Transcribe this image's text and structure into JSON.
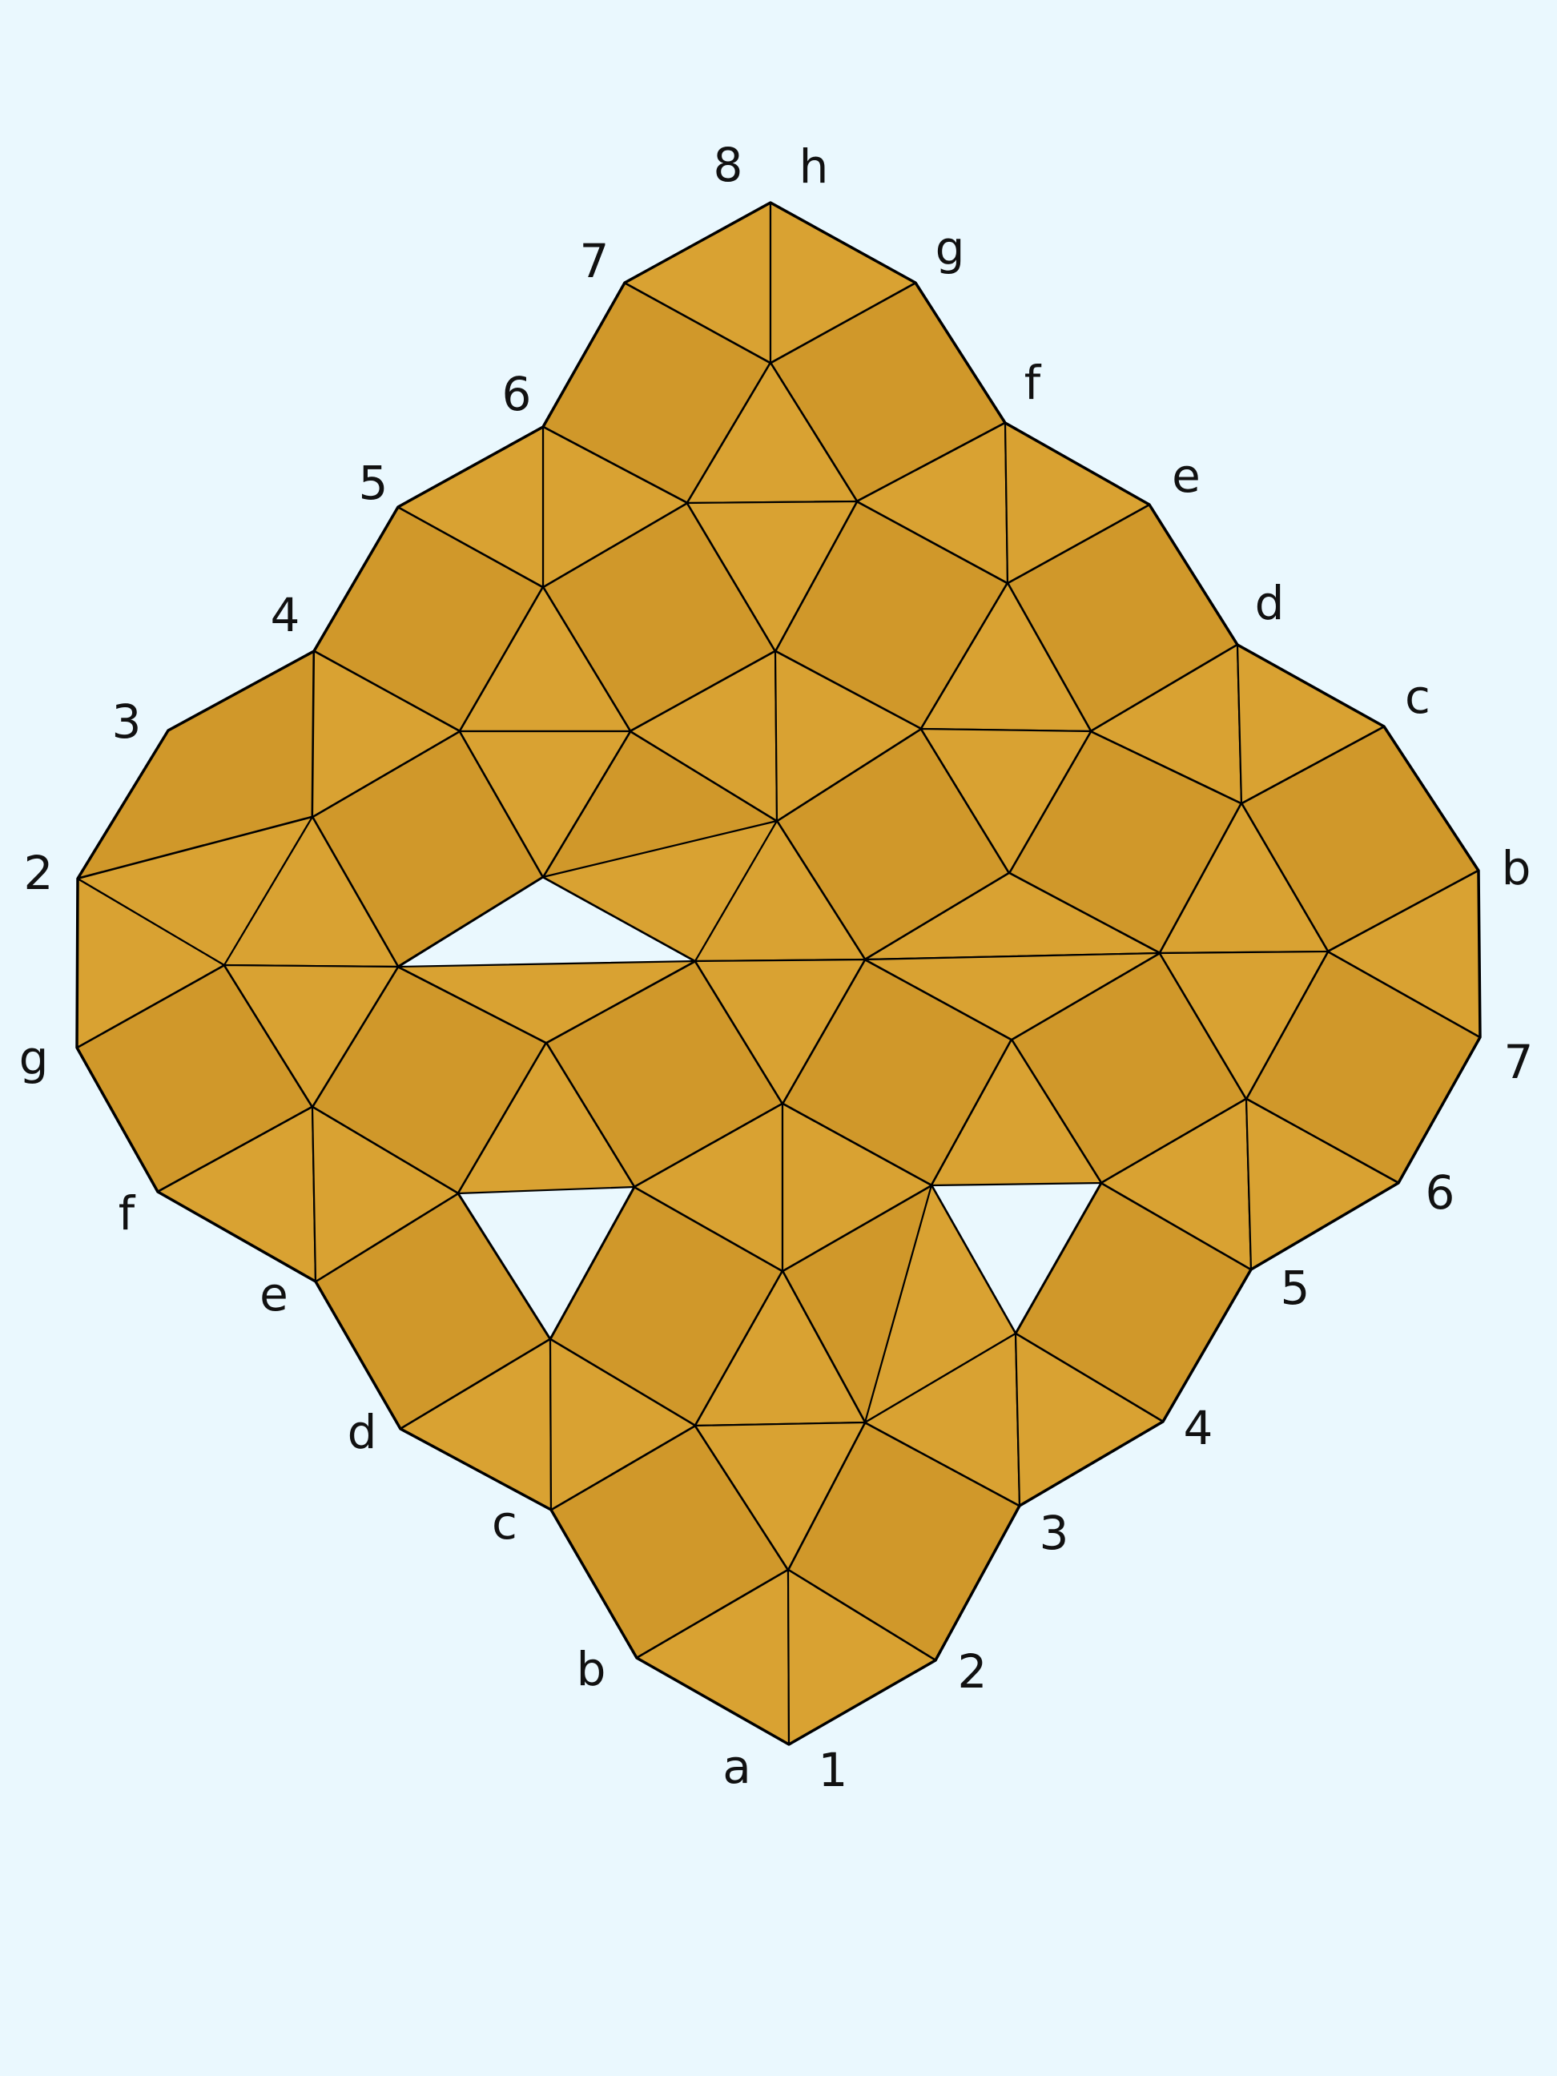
{
  "colors": {
    "background": "#eaf8fe",
    "square": "#d0982a",
    "triangle": "#d9a232",
    "line": "#000000"
  },
  "labels": {
    "top_number": "8",
    "top_letter": "h",
    "upper_left_numbers": [
      "7",
      "6",
      "5",
      "4",
      "3",
      "2"
    ],
    "upper_right_letters": [
      "g",
      "f",
      "e",
      "d",
      "c",
      "b"
    ],
    "left_letters": [
      "g",
      "f",
      "e",
      "d",
      "c",
      "b"
    ],
    "right_numbers": [
      "7",
      "6",
      "5",
      "4",
      "3",
      "2"
    ],
    "bottom_letter": "a",
    "bottom_number": "1"
  }
}
